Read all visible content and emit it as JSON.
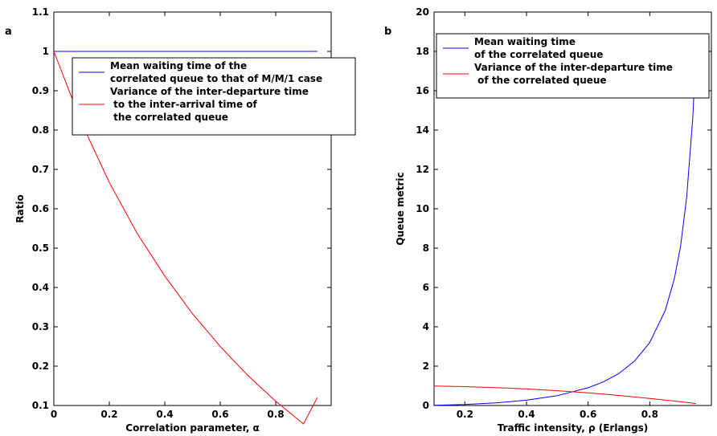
{
  "chart_data": [
    {
      "type": "line",
      "panel_label": "a",
      "xlabel": "Correlation parameter, α",
      "ylabel": "Ratio",
      "xlim": [
        0,
        1
      ],
      "ylim": [
        0.1,
        1.1
      ],
      "xticks": [
        0,
        0.2,
        0.4,
        0.6,
        0.8
      ],
      "xtick_labels": [
        "0",
        "0.2",
        "0.4",
        "0.6",
        "0.8"
      ],
      "yticks": [
        0.1,
        0.2,
        0.3,
        0.4,
        0.5,
        0.6,
        0.7,
        0.8,
        0.9,
        1,
        1.1
      ],
      "ytick_labels": [
        "0.1",
        "0.2",
        "0.3",
        "0.4",
        "0.5",
        "0.6",
        "0.7",
        "0.8",
        "0.9",
        "1",
        "1.1"
      ],
      "legend_placement": "top-right",
      "series": [
        {
          "legend_lines": [
            "Mean waiting time of the",
            "correlated queue to that of M/M/1 case"
          ],
          "color": "#0000ff",
          "x": [
            0,
            0.95
          ],
          "y": [
            1,
            1
          ]
        },
        {
          "legend_lines": [
            "Variance of the inter-departure time",
            " to the inter-arrival time of",
            " the correlated queue"
          ],
          "color": "#ff0000",
          "x": [
            0,
            0.1,
            0.2,
            0.3,
            0.4,
            0.5,
            0.6,
            0.7,
            0.8,
            0.9,
            0.95
          ],
          "y": [
            1,
            0.818,
            0.667,
            0.538,
            0.429,
            0.333,
            0.25,
            0.176,
            0.111,
            0.053,
            0.12
          ]
        }
      ]
    },
    {
      "type": "line",
      "panel_label": "b",
      "xlabel": "Traffic intensity, ρ (Erlangs)",
      "ylabel": "Queue metric",
      "xlim": [
        0.1,
        1
      ],
      "ylim": [
        0,
        20
      ],
      "xticks": [
        0.2,
        0.4,
        0.6,
        0.8
      ],
      "xtick_labels": [
        "0.2",
        "0.4",
        "0.6",
        "0.8"
      ],
      "yticks": [
        0,
        2,
        4,
        6,
        8,
        10,
        12,
        14,
        16,
        18,
        20
      ],
      "ytick_labels": [
        "0",
        "2",
        "4",
        "6",
        "8",
        "10",
        "12",
        "14",
        "16",
        "18",
        "20"
      ],
      "legend_placement": "top-left",
      "series": [
        {
          "legend_lines": [
            "Mean waiting time",
            "of the correlated queue"
          ],
          "color": "#0000ff",
          "x": [
            0.1,
            0.2,
            0.3,
            0.4,
            0.5,
            0.6,
            0.65,
            0.7,
            0.75,
            0.8,
            0.85,
            0.88,
            0.9,
            0.92,
            0.94,
            0.95
          ],
          "y": [
            0.01,
            0.05,
            0.13,
            0.27,
            0.5,
            0.9,
            1.2,
            1.63,
            2.25,
            3.2,
            4.82,
            6.45,
            8.1,
            10.6,
            14.7,
            18.05
          ]
        },
        {
          "legend_lines": [
            "Variance of the inter-departure time",
            " of the correlated queue"
          ],
          "color": "#ff0000",
          "x": [
            0.1,
            0.2,
            0.3,
            0.4,
            0.5,
            0.6,
            0.7,
            0.8,
            0.9,
            0.95
          ],
          "y": [
            0.99,
            0.96,
            0.91,
            0.84,
            0.75,
            0.64,
            0.51,
            0.36,
            0.19,
            0.1
          ]
        }
      ]
    }
  ]
}
